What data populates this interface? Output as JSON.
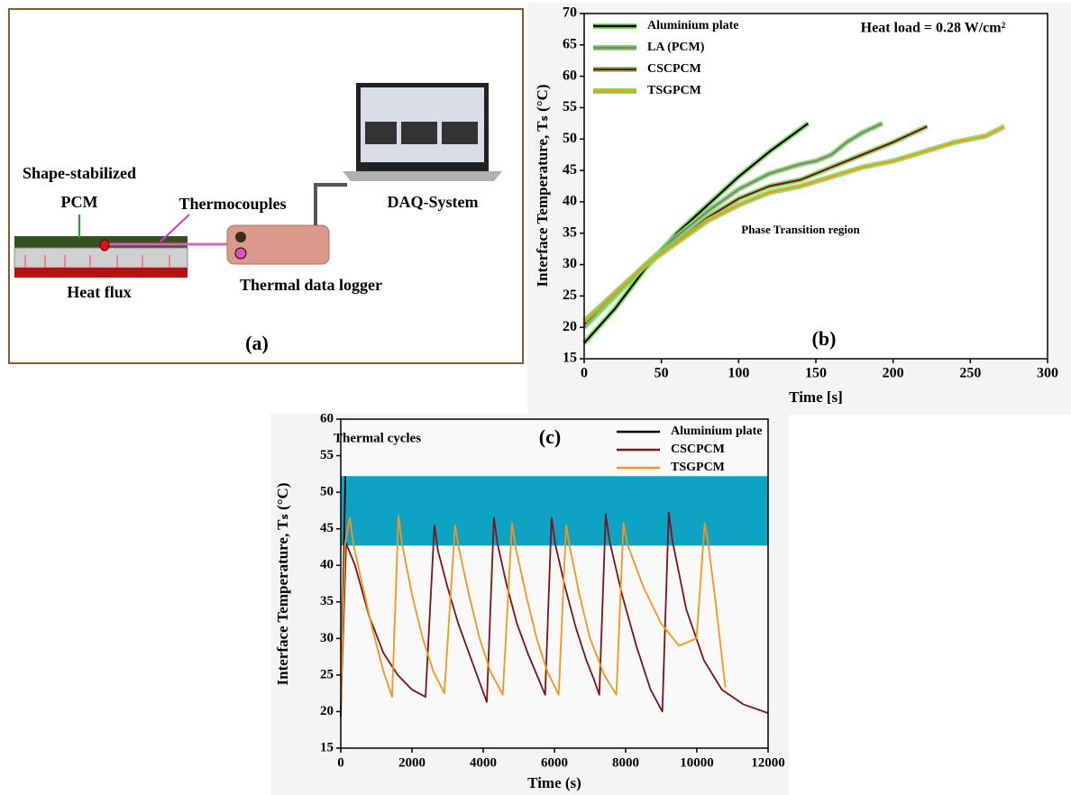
{
  "panel_a": {
    "labels": [
      "Shape-stabilized",
      "PCM",
      "Thermocouples",
      "DAQ-System",
      "Heat flux",
      "Thermal data logger"
    ],
    "panel_label": "(a)"
  },
  "chart_data": [
    {
      "type": "line",
      "panel_label": "(b)",
      "annotation": "Heat load = 0.28 W/cm²",
      "region_label": "Phase Transition region",
      "x_label": "Time [s]",
      "y_label": "Interface Temperature, Tₛ (°C)",
      "xlim": [
        0,
        300
      ],
      "xticks": [
        0,
        50,
        100,
        150,
        200,
        250,
        300
      ],
      "ylim": [
        15,
        70
      ],
      "yticks": [
        15,
        20,
        25,
        30,
        35,
        40,
        45,
        50,
        55,
        60,
        65,
        70
      ],
      "legend": "upper left",
      "outline_color": "#7ddc5c",
      "series": [
        {
          "name": "Aluminium plate",
          "color": "#000000",
          "x": [
            0,
            20,
            40,
            60,
            80,
            100,
            120,
            145
          ],
          "values": [
            17.5,
            23,
            29.5,
            35,
            39.5,
            44,
            48,
            52.5
          ]
        },
        {
          "name": "LA (PCM)",
          "color": "#808080",
          "x": [
            0,
            20,
            40,
            60,
            80,
            100,
            120,
            140,
            150,
            160,
            170,
            180,
            193
          ],
          "values": [
            20,
            25,
            30,
            34.5,
            38.5,
            42,
            44.5,
            46,
            46.5,
            47.5,
            49.5,
            51,
            52.5
          ]
        },
        {
          "name": "CSCPCM",
          "color": "#7b1416",
          "x": [
            0,
            40,
            80,
            100,
            120,
            140,
            160,
            180,
            200,
            222
          ],
          "values": [
            20.5,
            30,
            37.5,
            40.5,
            42.5,
            43.5,
            45.5,
            47.5,
            49.5,
            52
          ]
        },
        {
          "name": "TSGPCM",
          "color": "#f7941d",
          "x": [
            0,
            40,
            80,
            100,
            120,
            140,
            160,
            180,
            200,
            220,
            240,
            260,
            272
          ],
          "values": [
            21,
            30,
            37,
            39.5,
            41.5,
            42.5,
            44,
            45.5,
            46.5,
            48,
            49.5,
            50.5,
            52
          ]
        }
      ]
    },
    {
      "type": "line",
      "panel_label": "(c)",
      "title": "Thermal cycles",
      "x_label": "Time (s)",
      "y_label": "Interface Temperature, Tₛ (°C)",
      "xlim": [
        0,
        12000
      ],
      "xticks": [
        0,
        2000,
        4000,
        6000,
        8000,
        10000,
        12000
      ],
      "ylim": [
        15,
        60
      ],
      "yticks": [
        15,
        20,
        25,
        30,
        35,
        40,
        45,
        50,
        55,
        60
      ],
      "legend": "upper right",
      "band": {
        "range": [
          42.7,
          52.2
        ],
        "color": "#0ea3c4"
      },
      "series": [
        {
          "name": "Aluminium plate",
          "color": "#000000",
          "x": [
            0,
            130
          ],
          "values": [
            19.3,
            52.2
          ]
        },
        {
          "name": "CSCPCM",
          "color": "#7b1416",
          "x": [
            0,
            150,
            400,
            800,
            1200,
            1600,
            2000,
            2380,
            2630,
            2730,
            3000,
            3300,
            3600,
            3900,
            4100,
            4300,
            4400,
            4650,
            4950,
            5250,
            5550,
            5740,
            5920,
            6020,
            6300,
            6600,
            6900,
            7100,
            7260,
            7440,
            7540,
            7900,
            8300,
            8700,
            9030,
            9210,
            9310,
            9700,
            10200,
            10700,
            11300,
            12000
          ],
          "values": [
            20.5,
            43,
            40,
            33,
            28,
            25,
            23,
            22,
            45.5,
            42,
            37,
            32,
            28,
            24,
            21.3,
            46.5,
            43,
            37.5,
            32,
            28,
            24.5,
            22.3,
            46.5,
            43,
            37,
            31.5,
            27,
            24.5,
            22.3,
            47,
            43.5,
            36,
            29,
            23,
            20,
            47.2,
            43.5,
            34,
            27,
            23,
            21,
            19.8
          ]
        },
        {
          "name": "TSGPCM",
          "color": "#f7941d",
          "x": [
            0,
            120,
            253,
            350,
            600,
            900,
            1200,
            1440,
            1620,
            1720,
            2000,
            2300,
            2600,
            2910,
            3210,
            3310,
            3600,
            3900,
            4200,
            4550,
            4810,
            4910,
            5200,
            5500,
            5800,
            6120,
            6330,
            6430,
            6700,
            7000,
            7400,
            7740,
            7940,
            8040,
            8500,
            9000,
            9500,
            9990,
            10220,
            10320,
            10500,
            10800
          ],
          "values": [
            21,
            43,
            46.5,
            43,
            37.5,
            31,
            25.5,
            22,
            46.8,
            43,
            36,
            30,
            25.5,
            22.5,
            45.5,
            42.5,
            36,
            30,
            25.5,
            22.3,
            45.8,
            42.5,
            36,
            30,
            25.5,
            22.3,
            45.5,
            42.5,
            36,
            30,
            25,
            22.3,
            45.8,
            43,
            37,
            32,
            29,
            30,
            45.8,
            43,
            36,
            23.3
          ]
        }
      ]
    }
  ]
}
